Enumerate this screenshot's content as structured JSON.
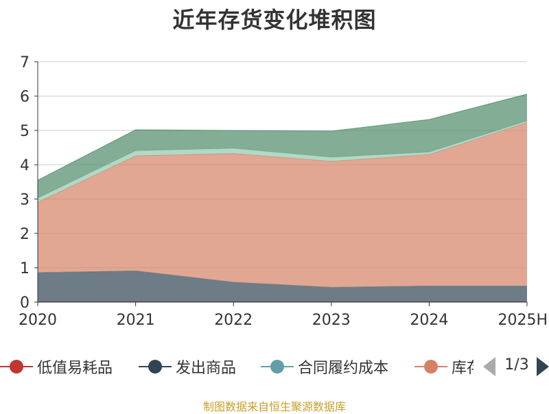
{
  "chart_data": {
    "type": "area",
    "stacked": true,
    "title": "近年存货变化堆积图",
    "xlabel": "",
    "ylabel": "",
    "categories": [
      "2020",
      "2021",
      "2022",
      "2023",
      "2024",
      "2025H"
    ],
    "ylim": [
      0,
      7
    ],
    "yticks": [
      0,
      1,
      2,
      3,
      4,
      5,
      6,
      7
    ],
    "grid": true,
    "series": [
      {
        "name": "低值易耗品",
        "color": "#c23531",
        "values": [
          0.01,
          0.01,
          0.01,
          0.01,
          0.01,
          0.01
        ]
      },
      {
        "name": "发出商品",
        "color": "#2f4554",
        "values": [
          0.85,
          0.9,
          0.57,
          0.42,
          0.46,
          0.46
        ]
      },
      {
        "name": "合同履约成本",
        "color": "#61a0a8",
        "values": [
          0.0,
          0.0,
          0.0,
          0.0,
          0.0,
          0.0
        ]
      },
      {
        "name": "库存商品",
        "color": "#d48265",
        "values": [
          2.05,
          3.35,
          3.75,
          3.67,
          3.83,
          4.76
        ]
      },
      {
        "name": "",
        "color": "#91c7ae",
        "values": [
          0.12,
          0.15,
          0.15,
          0.12,
          0.07,
          0.05
        ]
      },
      {
        "name": "",
        "color": "#4e8b68",
        "values": [
          0.52,
          0.61,
          0.52,
          0.76,
          0.95,
          0.78
        ]
      }
    ],
    "legend": {
      "position": "bottom",
      "page": "1/3"
    }
  },
  "footer": {
    "source": "制图数据来自恒生聚源数据库"
  },
  "icons": {
    "prev": "pager-prev-arrow-icon",
    "next": "pager-next-arrow-icon",
    "legend_marker": "circle-line-marker-icon"
  }
}
